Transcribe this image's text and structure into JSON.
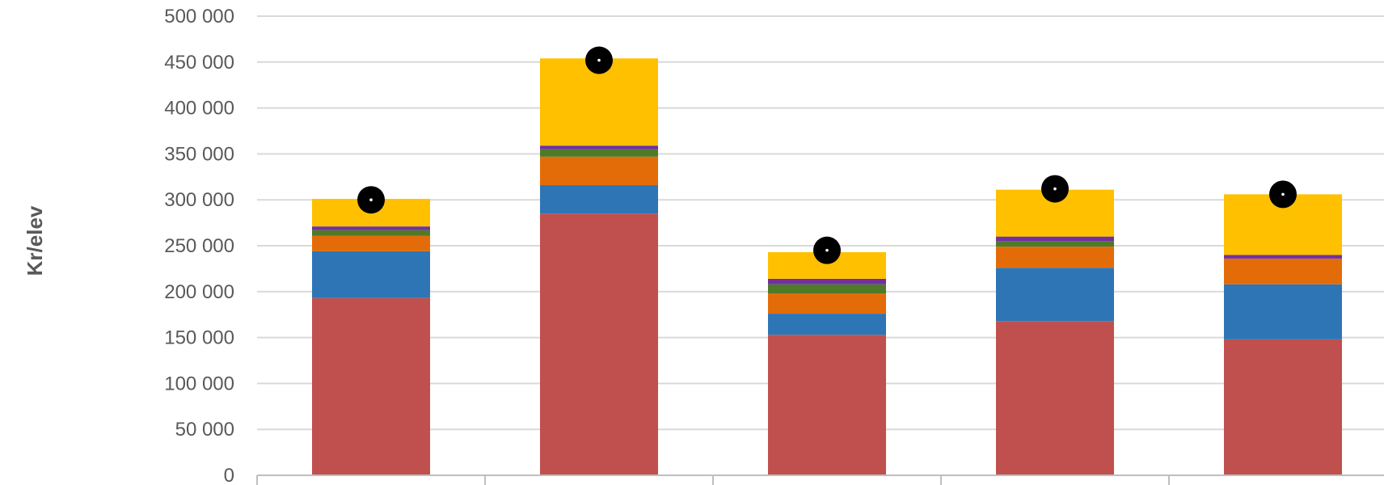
{
  "chart_data": {
    "type": "bar",
    "stacked": true,
    "ylabel": "Kr/elev",
    "ylim": [
      0,
      500000
    ],
    "ytick_step": 50000,
    "ytick_labels": [
      "0",
      "50 000",
      "100 000",
      "150 000",
      "200 000",
      "250 000",
      "300 000",
      "350 000",
      "400 000",
      "450 000",
      "500 000"
    ],
    "grid": true,
    "category_count": 5,
    "series": [
      {
        "color": "#c0504d",
        "values": [
          193000,
          285000,
          153000,
          168000,
          148000
        ]
      },
      {
        "color": "#2e75b6",
        "values": [
          51000,
          31000,
          23000,
          58000,
          60000
        ]
      },
      {
        "color": "#e36c09",
        "values": [
          17000,
          31000,
          22000,
          23000,
          28000
        ]
      },
      {
        "color": "#4f7a28",
        "values": [
          6000,
          8000,
          10000,
          6000,
          0
        ]
      },
      {
        "color": "#7030a0",
        "values": [
          4000,
          4000,
          6000,
          5000,
          4000
        ]
      },
      {
        "color": "#ffc000",
        "values": [
          30000,
          95000,
          29000,
          51000,
          66000
        ]
      }
    ],
    "markers": {
      "color": "#000000",
      "values": [
        300000,
        452000,
        245000,
        312000,
        306000
      ]
    }
  }
}
